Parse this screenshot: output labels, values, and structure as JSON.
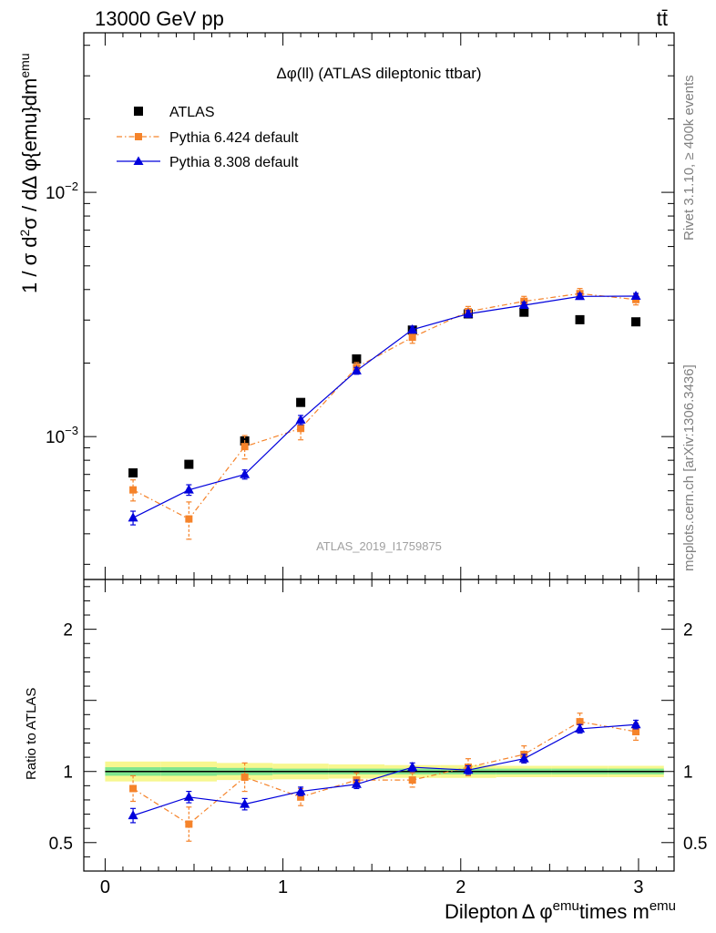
{
  "header": {
    "left": "13000 GeV pp",
    "right": "tt̄"
  },
  "side_labels": {
    "rivet": "Rivet 3.1.10, ≥ 400k events",
    "mcplots": "mcplots.cern.ch [arXiv:1306.3436]"
  },
  "chart_data": {
    "type": "scatter",
    "title": "Δφ(ll) (ATLAS dileptonic ttbar)",
    "watermark": "ATLAS_2019_I1759875",
    "xlabel": "Dilepton Δ φ^emu times m^emu",
    "ylabel": "1 / σ d²σ / dΔ φ{emu}dm^emu",
    "ratio_ylabel": "Ratio to ATLAS",
    "xlim": [
      -0.12,
      3.2
    ],
    "ylim": [
      0.00026,
      0.045
    ],
    "yscale": "log",
    "ratio_ylim": [
      0.3,
      2.35
    ],
    "x_ticks": [
      "0",
      "1",
      "2",
      "3"
    ],
    "y_ticks": [
      {
        "value": 0.001,
        "base": "10",
        "exp": "−3"
      },
      {
        "value": 0.01,
        "base": "10",
        "exp": "−2"
      }
    ],
    "ratio_ticks": [
      "0.5",
      "1",
      "2"
    ],
    "x": [
      0.157,
      0.471,
      0.785,
      1.1,
      1.414,
      1.728,
      2.042,
      2.356,
      2.67,
      2.985
    ],
    "series": [
      {
        "name": "ATLAS",
        "color": "#000000",
        "marker": "square",
        "values": [
          0.00071,
          0.00077,
          0.00096,
          0.00138,
          0.00208,
          0.00273,
          0.00318,
          0.00323,
          0.00301,
          0.00295
        ],
        "errors": [
          2e-05,
          2e-05,
          2e-05,
          3e-05,
          4e-05,
          5e-05,
          5e-05,
          5e-05,
          5e-05,
          5e-05
        ]
      },
      {
        "name": "Pythia 6.424 default",
        "color": "#f5832a",
        "marker": "square",
        "line": "dashdot",
        "values": [
          0.000605,
          0.00046,
          0.00091,
          0.00108,
          0.00192,
          0.00255,
          0.00325,
          0.00358,
          0.00385,
          0.00364
        ],
        "errors": [
          6e-05,
          8e-05,
          0.0001,
          0.00011,
          9e-05,
          0.00014,
          0.00016,
          0.00017,
          0.00019,
          0.00018
        ],
        "ratio": [
          0.88,
          0.63,
          0.96,
          0.82,
          0.94,
          0.94,
          1.03,
          1.12,
          1.35,
          1.28
        ],
        "ratio_errors": [
          0.09,
          0.12,
          0.1,
          0.06,
          0.05,
          0.05,
          0.06,
          0.06,
          0.06,
          0.06
        ]
      },
      {
        "name": "Pythia 8.308 default",
        "color": "#0000dc",
        "marker": "triangle",
        "line": "solid",
        "values": [
          0.000465,
          0.000605,
          0.0007,
          0.00117,
          0.00186,
          0.00274,
          0.00318,
          0.00345,
          0.00375,
          0.00376
        ],
        "errors": [
          3e-05,
          3e-05,
          3e-05,
          5e-05,
          6e-05,
          9e-05,
          0.0001,
          0.0001,
          0.0001,
          0.0001
        ],
        "ratio": [
          0.69,
          0.82,
          0.77,
          0.86,
          0.91,
          1.03,
          1.01,
          1.09,
          1.3,
          1.33
        ],
        "ratio_errors": [
          0.05,
          0.04,
          0.04,
          0.03,
          0.03,
          0.03,
          0.03,
          0.03,
          0.03,
          0.03
        ]
      }
    ],
    "ratio_band": {
      "inner_color": "#7fe58f",
      "outer_color": "#f7f78f",
      "inner_halfwidth": [
        0.03,
        0.03,
        0.025,
        0.02,
        0.02,
        0.02,
        0.02,
        0.02,
        0.02,
        0.02
      ],
      "outer_halfwidth": [
        0.07,
        0.07,
        0.06,
        0.055,
        0.05,
        0.045,
        0.045,
        0.04,
        0.04,
        0.04
      ]
    },
    "legend_position": "top-left"
  }
}
